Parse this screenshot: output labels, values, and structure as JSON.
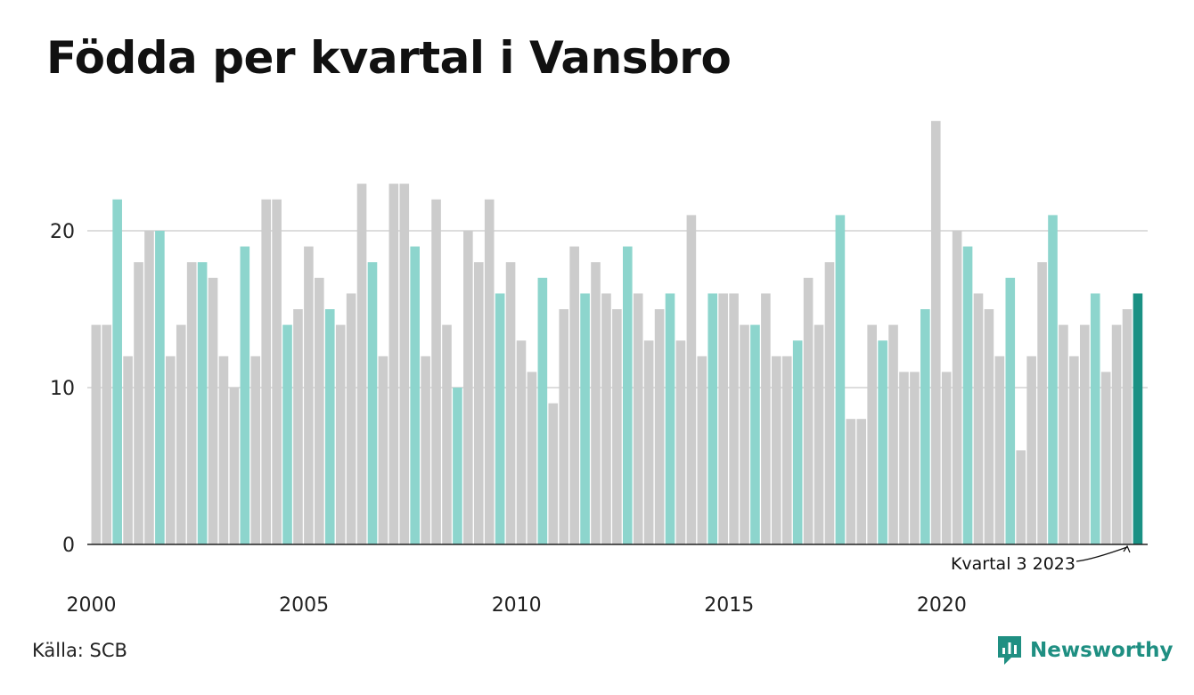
{
  "page": {
    "title": "Födda per kvartal i Vansbro",
    "source": "Källa: SCB",
    "brand": "Newsworthy"
  },
  "colors": {
    "bar_default": "#cccccc",
    "bar_q4": "#8dd5cd",
    "bar_latest": "#1a9184",
    "gridline": "#dddddd",
    "axis": "#222222",
    "brand": "#1f8f82"
  },
  "chart_data": {
    "type": "bar",
    "title": "Födda per kvartal i Vansbro",
    "xlabel": "",
    "ylabel": "",
    "ylim": [
      0,
      27
    ],
    "yticks": [
      0,
      10,
      20
    ],
    "xticks": [
      "2000",
      "2005",
      "2010",
      "2015",
      "2020"
    ],
    "grid": true,
    "start_year": 2000,
    "quarters_per_year": 4,
    "highlight_rule": "quarter 4 highlighted, latest quarter emphasized",
    "annotation": "Kvartal 3 2023",
    "values": [
      14,
      14,
      22,
      12,
      18,
      20,
      20,
      12,
      14,
      18,
      18,
      17,
      12,
      10,
      19,
      12,
      22,
      22,
      14,
      15,
      19,
      17,
      15,
      14,
      16,
      23,
      18,
      12,
      23,
      23,
      19,
      12,
      22,
      14,
      10,
      20,
      18,
      22,
      16,
      18,
      13,
      11,
      17,
      9,
      15,
      19,
      16,
      18,
      16,
      15,
      19,
      16,
      13,
      15,
      16,
      13,
      21,
      12,
      16,
      16,
      16,
      14,
      14,
      16,
      12,
      12,
      13,
      17,
      14,
      18,
      21,
      8,
      8,
      14,
      13,
      14,
      11,
      11,
      15,
      27,
      11,
      20,
      19,
      16,
      15,
      12,
      17,
      6,
      12,
      18,
      21,
      14,
      12,
      14,
      16,
      11,
      14,
      15,
      16
    ]
  }
}
